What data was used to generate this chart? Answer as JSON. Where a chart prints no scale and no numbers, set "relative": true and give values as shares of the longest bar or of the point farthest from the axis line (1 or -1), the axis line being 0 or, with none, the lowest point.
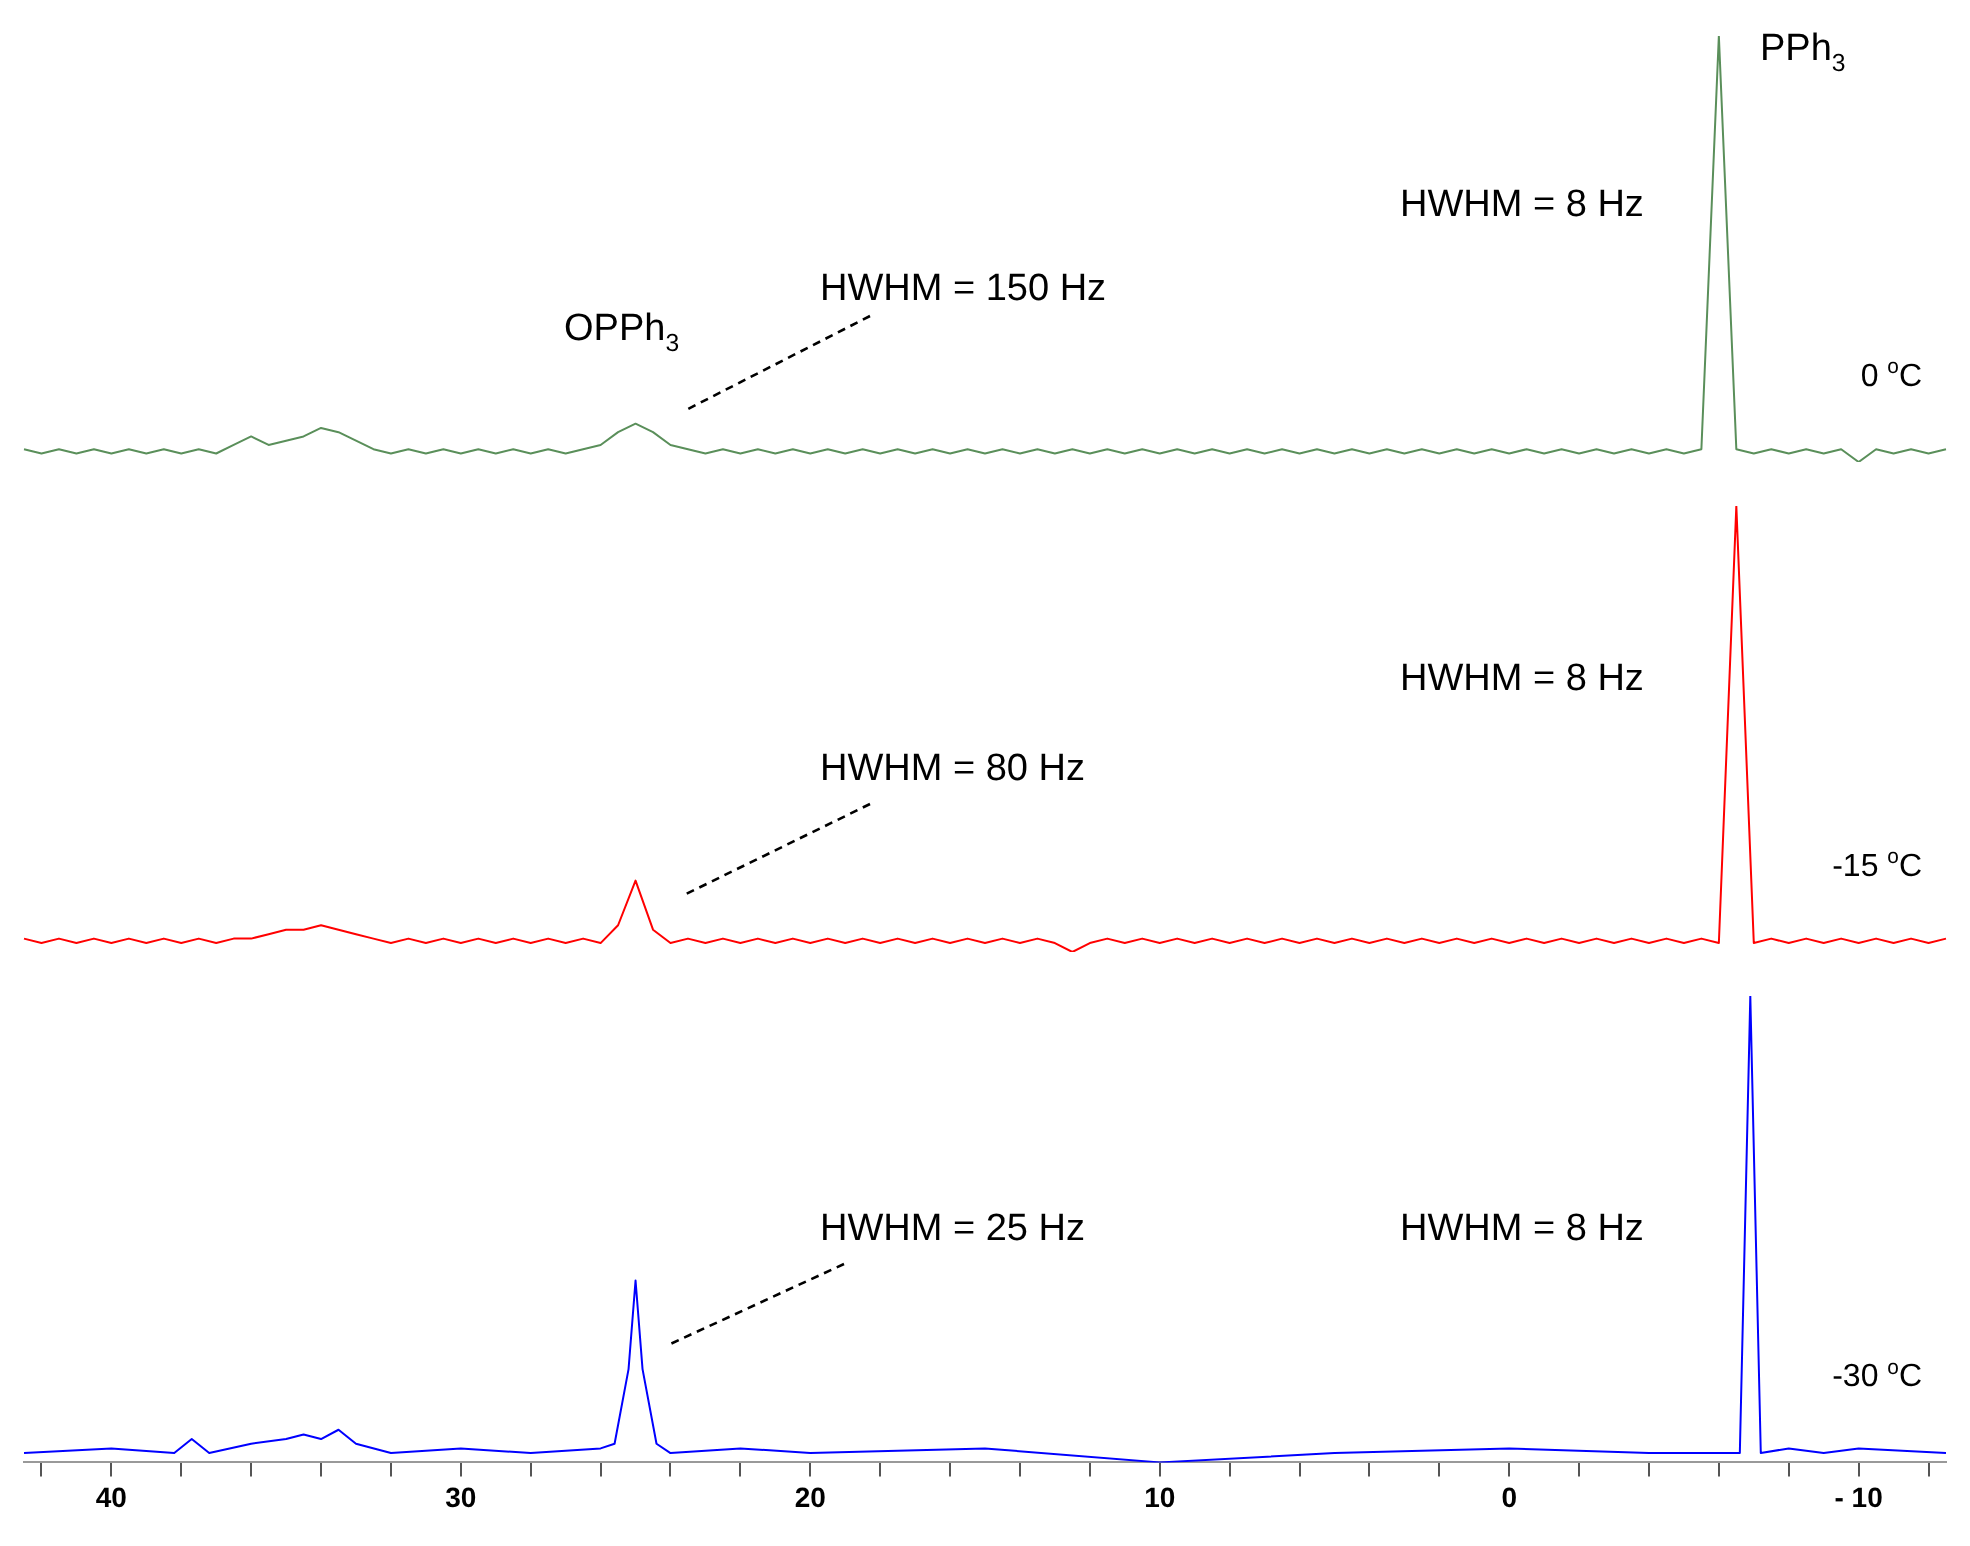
{
  "chart_data": [
    {
      "type": "line",
      "relative": true,
      "tick_labels": false,
      "categories": [
        null,
        null,
        null,
        null,
        null,
        null,
        null,
        null,
        null,
        null,
        null,
        null,
        null,
        null,
        null,
        null,
        null,
        null,
        null,
        null,
        null,
        null,
        null,
        null,
        null,
        null,
        null,
        null,
        null,
        null,
        null,
        null,
        null,
        null,
        null,
        null,
        null,
        null,
        null,
        null,
        null,
        null,
        null,
        null,
        null,
        null,
        null,
        null,
        null,
        null,
        null,
        null,
        null,
        null,
        null,
        null,
        null,
        null,
        null,
        null,
        null,
        null,
        null,
        null,
        null,
        null,
        null,
        null,
        null,
        null,
        null,
        null,
        null,
        null,
        null,
        null,
        null,
        null,
        null,
        null,
        null,
        null,
        null,
        null,
        null,
        null,
        null,
        null,
        null,
        null,
        null,
        null,
        null,
        null,
        null,
        null,
        null,
        null,
        null,
        null,
        null,
        null,
        null,
        null,
        null,
        null,
        null,
        null,
        null,
        null,
        null
      ],
      "series": [
        {
          "name": "0 $^{o}$C",
          "color": "#5a8f5a",
          "values": [
            0.03,
            0.02,
            0.03,
            0.02,
            0.03,
            0.02,
            0.03,
            0.02,
            0.03,
            0.02,
            0.03,
            0.02,
            0.04,
            0.06,
            0.04,
            0.05,
            0.06,
            0.08,
            0.07,
            0.05,
            0.03,
            0.02,
            0.03,
            0.02,
            0.03,
            0.02,
            0.03,
            0.02,
            0.03,
            0.02,
            0.03,
            0.02,
            0.03,
            0.04,
            0.07,
            0.09,
            0.07,
            0.04,
            0.03,
            0.02,
            0.03,
            0.02,
            0.03,
            0.02,
            0.03,
            0.02,
            0.03,
            0.02,
            0.03,
            0.02,
            0.03,
            0.02,
            0.03,
            0.02,
            0.03,
            0.02,
            0.03,
            0.02,
            0.03,
            0.02,
            0.03,
            0.02,
            0.03,
            0.02,
            0.03,
            0.02,
            0.03,
            0.02,
            0.03,
            0.02,
            0.03,
            0.02,
            0.03,
            0.02,
            0.03,
            0.02,
            0.03,
            0.02,
            0.03,
            0.02,
            0.03,
            0.02,
            0.03,
            0.02,
            0.03,
            0.02,
            0.03,
            0.02,
            0.03,
            0.02,
            0.03,
            0.02,
            0.03,
            0.02,
            0.03,
            0.02,
            0.03,
            1,
            0.03,
            0.02,
            0.03,
            0.02,
            0.03,
            0.02,
            0.03,
            0,
            0.03,
            0.02,
            0.03,
            0.02,
            0.03
          ]
        }
      ],
      "annotations": [
        "PPh$_{3}$",
        "HWHM = 8 Hz",
        "OPPh$_{3}$",
        "HWHM = 150 Hz"
      ]
    },
    {
      "type": "line",
      "relative": true,
      "tick_labels": false,
      "categories": [
        null,
        null,
        null,
        null,
        null,
        null,
        null,
        null,
        null,
        null,
        null,
        null,
        null,
        null,
        null,
        null,
        null,
        null,
        null,
        null,
        null,
        null,
        null,
        null,
        null,
        null,
        null,
        null,
        null,
        null,
        null,
        null,
        null,
        null,
        null,
        null,
        null,
        null,
        null,
        null,
        null,
        null,
        null,
        null,
        null,
        null,
        null,
        null,
        null,
        null,
        null,
        null,
        null,
        null,
        null,
        null,
        null,
        null,
        null,
        null,
        null,
        null,
        null,
        null,
        null,
        null,
        null,
        null,
        null,
        null,
        null,
        null,
        null,
        null,
        null,
        null,
        null,
        null,
        null,
        null,
        null,
        null,
        null,
        null,
        null,
        null,
        null,
        null,
        null,
        null,
        null,
        null,
        null,
        null,
        null,
        null,
        null,
        null,
        null,
        null,
        null,
        null,
        null,
        null,
        null,
        null,
        null,
        null,
        null,
        null,
        null
      ],
      "series": [
        {
          "name": "-15 $^{o}$C",
          "color": "#ff0000",
          "values": [
            0.03,
            0.02,
            0.03,
            0.02,
            0.03,
            0.02,
            0.03,
            0.02,
            0.03,
            0.02,
            0.03,
            0.02,
            0.03,
            0.03,
            0.04,
            0.05,
            0.05,
            0.06,
            0.05,
            0.04,
            0.03,
            0.02,
            0.03,
            0.02,
            0.03,
            0.02,
            0.03,
            0.02,
            0.03,
            0.02,
            0.03,
            0.02,
            0.03,
            0.02,
            0.06,
            0.16,
            0.05,
            0.02,
            0.03,
            0.02,
            0.03,
            0.02,
            0.03,
            0.02,
            0.03,
            0.02,
            0.03,
            0.02,
            0.03,
            0.02,
            0.03,
            0.02,
            0.03,
            0.02,
            0.03,
            0.02,
            0.03,
            0.02,
            0.03,
            0.02,
            0,
            0.02,
            0.03,
            0.02,
            0.03,
            0.02,
            0.03,
            0.02,
            0.03,
            0.02,
            0.03,
            0.02,
            0.03,
            0.02,
            0.03,
            0.02,
            0.03,
            0.02,
            0.03,
            0.02,
            0.03,
            0.02,
            0.03,
            0.02,
            0.03,
            0.02,
            0.03,
            0.02,
            0.03,
            0.02,
            0.03,
            0.02,
            0.03,
            0.02,
            0.03,
            0.02,
            0.03,
            0.02,
            1,
            0.02,
            0.03,
            0.02,
            0.03,
            0.02,
            0.03,
            0.02,
            0.03,
            0.02,
            0.03,
            0.02,
            0.03
          ]
        }
      ],
      "annotations": [
        "HWHM = 8 Hz",
        "HWHM = 80 Hz"
      ]
    },
    {
      "type": "line",
      "relative": true,
      "tick_labels": "x",
      "xlim": [
        42.5,
        -12.5
      ],
      "xticks": [
        {
          "value": 42,
          "label": null
        },
        40,
        {
          "value": 38,
          "label": null
        },
        {
          "value": 36,
          "label": null
        },
        {
          "value": 34,
          "label": null
        },
        {
          "value": 32,
          "label": null
        },
        30,
        {
          "value": 28,
          "label": null
        },
        {
          "value": 26,
          "label": null
        },
        {
          "value": 24,
          "label": null
        },
        {
          "value": 22,
          "label": null
        },
        20,
        {
          "value": 18,
          "label": null
        },
        {
          "value": 16,
          "label": null
        },
        {
          "value": 14,
          "label": null
        },
        {
          "value": 12,
          "label": null
        },
        10,
        {
          "value": 8,
          "label": null
        },
        {
          "value": 6,
          "label": null
        },
        {
          "value": 4,
          "label": null
        },
        {
          "value": 2,
          "label": null
        },
        0,
        {
          "value": -2,
          "label": null
        },
        {
          "value": -4,
          "label": null
        },
        {
          "value": -6,
          "label": null
        },
        {
          "value": -8,
          "label": null
        },
        {
          "value": -10,
          "label": "- 10"
        },
        {
          "value": -12,
          "label": null
        }
      ],
      "series": [
        {
          "name": "-30 $^{o}$C",
          "color": "#0000ff",
          "x": [
            42.5,
            40,
            38.2,
            37.7,
            37.2,
            36,
            35,
            34.5,
            34,
            33.5,
            33,
            32,
            30,
            28,
            26,
            25.6,
            25.2,
            25,
            24.8,
            24.4,
            24,
            22,
            20,
            15,
            10,
            5,
            0,
            -4,
            -6.6,
            -6.9,
            -7.2,
            -8,
            -9,
            -10,
            -12.5
          ],
          "values": [
            0.02,
            0.03,
            0.02,
            0.05,
            0.02,
            0.04,
            0.05,
            0.06,
            0.05,
            0.07,
            0.04,
            0.02,
            0.03,
            0.02,
            0.03,
            0.04,
            0.2,
            0.39,
            0.2,
            0.04,
            0.02,
            0.03,
            0.02,
            0.03,
            0,
            0.02,
            0.03,
            0.02,
            0.02,
            1,
            0.02,
            0.03,
            0.02,
            0.03,
            0.02
          ]
        }
      ],
      "annotations": [
        "HWHM = 25 Hz",
        "HWHM = 8 Hz"
      ]
    }
  ]
}
